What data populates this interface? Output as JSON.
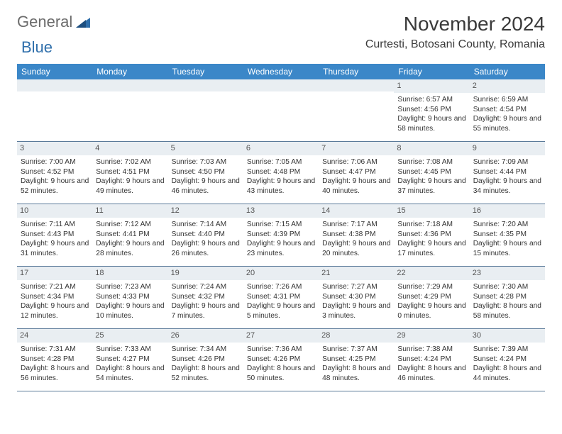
{
  "logo": {
    "general": "General",
    "blue": "Blue"
  },
  "title": "November 2024",
  "location": "Curtesti, Botosani County, Romania",
  "colors": {
    "header_bg": "#3b87c8",
    "header_text": "#ffffff",
    "daynum_bg": "#e9eef2",
    "border": "#5a7a99",
    "logo_gray": "#6b6b6b",
    "logo_blue": "#2f6fab"
  },
  "dow": [
    "Sunday",
    "Monday",
    "Tuesday",
    "Wednesday",
    "Thursday",
    "Friday",
    "Saturday"
  ],
  "weeks": [
    [
      {
        "n": "",
        "sr": "",
        "ss": "",
        "dl": ""
      },
      {
        "n": "",
        "sr": "",
        "ss": "",
        "dl": ""
      },
      {
        "n": "",
        "sr": "",
        "ss": "",
        "dl": ""
      },
      {
        "n": "",
        "sr": "",
        "ss": "",
        "dl": ""
      },
      {
        "n": "",
        "sr": "",
        "ss": "",
        "dl": ""
      },
      {
        "n": "1",
        "sr": "Sunrise: 6:57 AM",
        "ss": "Sunset: 4:56 PM",
        "dl": "Daylight: 9 hours and 58 minutes."
      },
      {
        "n": "2",
        "sr": "Sunrise: 6:59 AM",
        "ss": "Sunset: 4:54 PM",
        "dl": "Daylight: 9 hours and 55 minutes."
      }
    ],
    [
      {
        "n": "3",
        "sr": "Sunrise: 7:00 AM",
        "ss": "Sunset: 4:52 PM",
        "dl": "Daylight: 9 hours and 52 minutes."
      },
      {
        "n": "4",
        "sr": "Sunrise: 7:02 AM",
        "ss": "Sunset: 4:51 PM",
        "dl": "Daylight: 9 hours and 49 minutes."
      },
      {
        "n": "5",
        "sr": "Sunrise: 7:03 AM",
        "ss": "Sunset: 4:50 PM",
        "dl": "Daylight: 9 hours and 46 minutes."
      },
      {
        "n": "6",
        "sr": "Sunrise: 7:05 AM",
        "ss": "Sunset: 4:48 PM",
        "dl": "Daylight: 9 hours and 43 minutes."
      },
      {
        "n": "7",
        "sr": "Sunrise: 7:06 AM",
        "ss": "Sunset: 4:47 PM",
        "dl": "Daylight: 9 hours and 40 minutes."
      },
      {
        "n": "8",
        "sr": "Sunrise: 7:08 AM",
        "ss": "Sunset: 4:45 PM",
        "dl": "Daylight: 9 hours and 37 minutes."
      },
      {
        "n": "9",
        "sr": "Sunrise: 7:09 AM",
        "ss": "Sunset: 4:44 PM",
        "dl": "Daylight: 9 hours and 34 minutes."
      }
    ],
    [
      {
        "n": "10",
        "sr": "Sunrise: 7:11 AM",
        "ss": "Sunset: 4:43 PM",
        "dl": "Daylight: 9 hours and 31 minutes."
      },
      {
        "n": "11",
        "sr": "Sunrise: 7:12 AM",
        "ss": "Sunset: 4:41 PM",
        "dl": "Daylight: 9 hours and 28 minutes."
      },
      {
        "n": "12",
        "sr": "Sunrise: 7:14 AM",
        "ss": "Sunset: 4:40 PM",
        "dl": "Daylight: 9 hours and 26 minutes."
      },
      {
        "n": "13",
        "sr": "Sunrise: 7:15 AM",
        "ss": "Sunset: 4:39 PM",
        "dl": "Daylight: 9 hours and 23 minutes."
      },
      {
        "n": "14",
        "sr": "Sunrise: 7:17 AM",
        "ss": "Sunset: 4:38 PM",
        "dl": "Daylight: 9 hours and 20 minutes."
      },
      {
        "n": "15",
        "sr": "Sunrise: 7:18 AM",
        "ss": "Sunset: 4:36 PM",
        "dl": "Daylight: 9 hours and 17 minutes."
      },
      {
        "n": "16",
        "sr": "Sunrise: 7:20 AM",
        "ss": "Sunset: 4:35 PM",
        "dl": "Daylight: 9 hours and 15 minutes."
      }
    ],
    [
      {
        "n": "17",
        "sr": "Sunrise: 7:21 AM",
        "ss": "Sunset: 4:34 PM",
        "dl": "Daylight: 9 hours and 12 minutes."
      },
      {
        "n": "18",
        "sr": "Sunrise: 7:23 AM",
        "ss": "Sunset: 4:33 PM",
        "dl": "Daylight: 9 hours and 10 minutes."
      },
      {
        "n": "19",
        "sr": "Sunrise: 7:24 AM",
        "ss": "Sunset: 4:32 PM",
        "dl": "Daylight: 9 hours and 7 minutes."
      },
      {
        "n": "20",
        "sr": "Sunrise: 7:26 AM",
        "ss": "Sunset: 4:31 PM",
        "dl": "Daylight: 9 hours and 5 minutes."
      },
      {
        "n": "21",
        "sr": "Sunrise: 7:27 AM",
        "ss": "Sunset: 4:30 PM",
        "dl": "Daylight: 9 hours and 3 minutes."
      },
      {
        "n": "22",
        "sr": "Sunrise: 7:29 AM",
        "ss": "Sunset: 4:29 PM",
        "dl": "Daylight: 9 hours and 0 minutes."
      },
      {
        "n": "23",
        "sr": "Sunrise: 7:30 AM",
        "ss": "Sunset: 4:28 PM",
        "dl": "Daylight: 8 hours and 58 minutes."
      }
    ],
    [
      {
        "n": "24",
        "sr": "Sunrise: 7:31 AM",
        "ss": "Sunset: 4:28 PM",
        "dl": "Daylight: 8 hours and 56 minutes."
      },
      {
        "n": "25",
        "sr": "Sunrise: 7:33 AM",
        "ss": "Sunset: 4:27 PM",
        "dl": "Daylight: 8 hours and 54 minutes."
      },
      {
        "n": "26",
        "sr": "Sunrise: 7:34 AM",
        "ss": "Sunset: 4:26 PM",
        "dl": "Daylight: 8 hours and 52 minutes."
      },
      {
        "n": "27",
        "sr": "Sunrise: 7:36 AM",
        "ss": "Sunset: 4:26 PM",
        "dl": "Daylight: 8 hours and 50 minutes."
      },
      {
        "n": "28",
        "sr": "Sunrise: 7:37 AM",
        "ss": "Sunset: 4:25 PM",
        "dl": "Daylight: 8 hours and 48 minutes."
      },
      {
        "n": "29",
        "sr": "Sunrise: 7:38 AM",
        "ss": "Sunset: 4:24 PM",
        "dl": "Daylight: 8 hours and 46 minutes."
      },
      {
        "n": "30",
        "sr": "Sunrise: 7:39 AM",
        "ss": "Sunset: 4:24 PM",
        "dl": "Daylight: 8 hours and 44 minutes."
      }
    ]
  ]
}
